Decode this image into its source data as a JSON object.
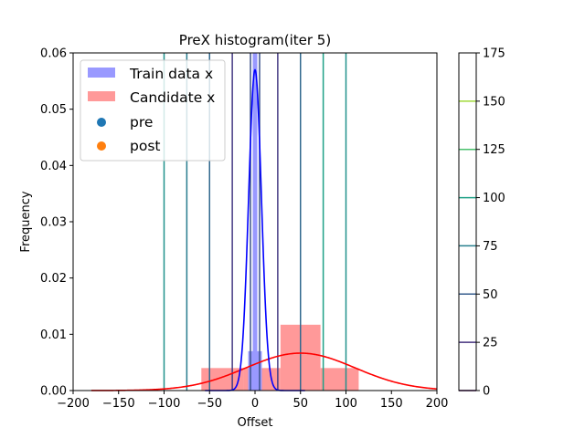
{
  "chart_data": {
    "type": "histogram",
    "title": "PreX histogram(iter 5)",
    "xlabel": "Offset",
    "ylabel": "Frequency",
    "xlim": [
      -200,
      200
    ],
    "ylim": [
      0,
      0.06
    ],
    "x_ticks": [
      "−200",
      "−150",
      "−100",
      "−50",
      "0",
      "50",
      "100",
      "150",
      "200"
    ],
    "y_ticks": [
      "0.00",
      "0.01",
      "0.02",
      "0.03",
      "0.04",
      "0.05",
      "0.06"
    ],
    "legend": {
      "placement": "top-left",
      "entries": [
        {
          "label": "Train data x",
          "kind": "patch",
          "color": "#9999ff"
        },
        {
          "label": "Candidate x",
          "kind": "patch",
          "color": "#ff9999"
        },
        {
          "label": "pre",
          "kind": "marker",
          "color": "#1f77b4"
        },
        {
          "label": "post",
          "kind": "marker",
          "color": "#ff7f0e"
        }
      ]
    },
    "train_hist": {
      "color": "#9999ff",
      "bins": [
        {
          "x0": -7.5,
          "x1": -2.5,
          "value": 0.007
        },
        {
          "x0": -2.5,
          "x1": 2.5,
          "value": 0.06
        },
        {
          "x0": 2.5,
          "x1": 7.5,
          "value": 0.007
        }
      ]
    },
    "candidate_hist": {
      "color": "#ff9999",
      "bins": [
        {
          "x0": -59,
          "x1": -13,
          "value": 0.004
        },
        {
          "x0": -13,
          "x1": 28,
          "value": 0.004
        },
        {
          "x0": 28,
          "x1": 72,
          "value": 0.0117
        },
        {
          "x0": 72,
          "x1": 114,
          "value": 0.004
        }
      ]
    },
    "train_fit": {
      "color": "#0000ff",
      "mu": 0,
      "sigma": 7
    },
    "candidate_fit": {
      "color": "#ff0000",
      "mu": 50,
      "sigma": 60
    },
    "contour_lines": [
      {
        "x": -100,
        "level": 100,
        "color": "#21918c"
      },
      {
        "x": 100,
        "level": 100,
        "color": "#21918c"
      },
      {
        "x": -75,
        "level": 75,
        "color": "#287c8e"
      },
      {
        "x": 75,
        "level": 75,
        "color": "#1fa187"
      },
      {
        "x": -50,
        "level": 50,
        "color": "#31688e"
      },
      {
        "x": 50,
        "level": 50,
        "color": "#31688e"
      },
      {
        "x": -25,
        "level": 25,
        "color": "#443a83"
      },
      {
        "x": 25,
        "level": 25,
        "color": "#443a83"
      },
      {
        "x": -5,
        "level": 25,
        "color": "#3b528b"
      },
      {
        "x": 5,
        "level": 25,
        "color": "#3b528b"
      }
    ],
    "colorbar": {
      "range": [
        0,
        175
      ],
      "ticks": [
        "0",
        "25",
        "50",
        "75",
        "100",
        "125",
        "150",
        "175"
      ],
      "levels": [
        {
          "value": 0,
          "color": "#440154"
        },
        {
          "value": 25,
          "color": "#46327e"
        },
        {
          "value": 50,
          "color": "#365c8d"
        },
        {
          "value": 75,
          "color": "#277f8e"
        },
        {
          "value": 100,
          "color": "#1fa187"
        },
        {
          "value": 125,
          "color": "#4ac16d"
        },
        {
          "value": 150,
          "color": "#a0da39"
        }
      ]
    }
  }
}
